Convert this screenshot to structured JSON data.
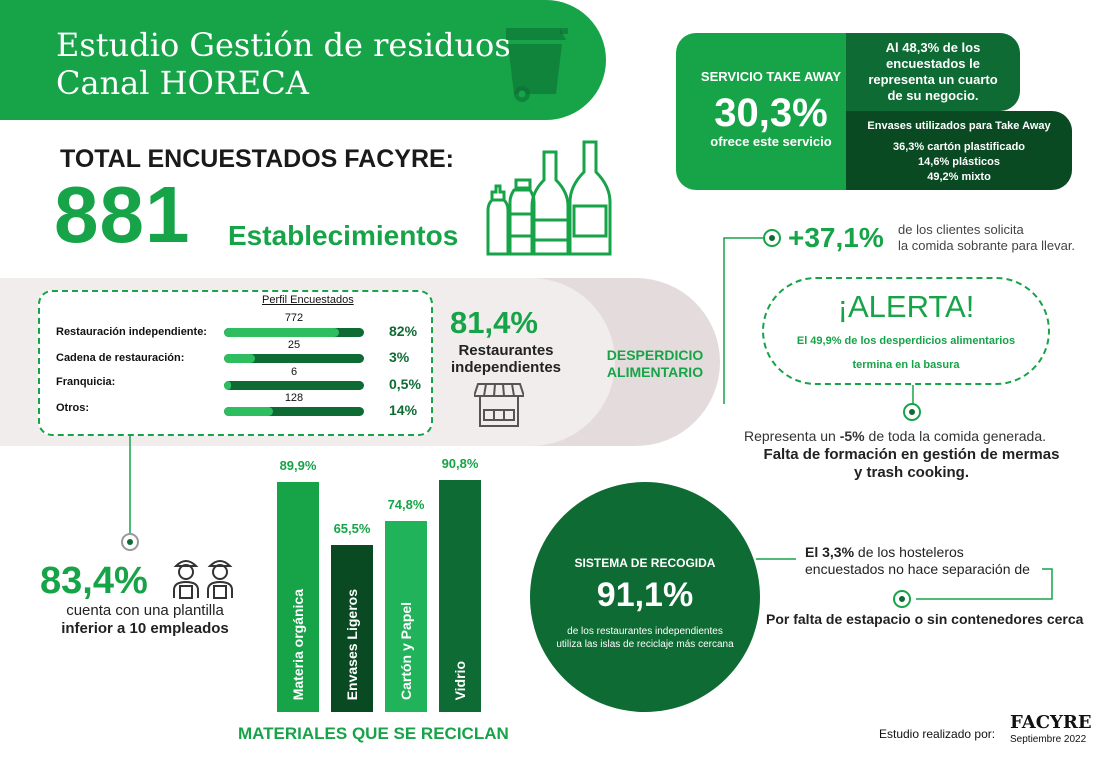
{
  "header": {
    "title_line1": "Estudio Gestión de residuos",
    "title_line2": "Canal HORECA"
  },
  "totals": {
    "heading": "TOTAL ENCUESTADOS FACYRE:",
    "number": "881",
    "unit": "Establecimientos"
  },
  "takeaway": {
    "title": "SERVICIO TAKE AWAY",
    "percent": "30,3%",
    "subtitle": "ofrece este servicio",
    "quarter_text": "Al 48,3% de los encuestados le representa un cuarto de su negocio.",
    "packaging_title": "Envases utilizados para Take Away",
    "packaging": [
      "36,3% cartón plastificado",
      "14,6% plásticos",
      "49,2% mixto"
    ]
  },
  "profile": {
    "title": "Perfil Encuestados",
    "rows": [
      {
        "label": "Restauración independiente:",
        "count": "772",
        "percent": "82%",
        "fill": 0.82
      },
      {
        "label": "Cadena de restauración:",
        "count": "25",
        "percent": "3%",
        "fill": 0.22
      },
      {
        "label": "Franquicia:",
        "count": "6",
        "percent": "0,5%",
        "fill": 0.05
      },
      {
        "label": "Otros:",
        "count": "128",
        "percent": "14%",
        "fill": 0.35
      }
    ]
  },
  "independents": {
    "percent": "81,4%",
    "label_line1": "Restaurantes",
    "label_line2": "independientes"
  },
  "waste": {
    "label_line1": "DESPERDICIO",
    "label_line2": "ALIMENTARIO",
    "leftover_percent": "+37,1%",
    "leftover_line1": "de los clientes solicita",
    "leftover_line2": "la comida sobrante para llevar.",
    "alert_title": "¡ALERTA!",
    "alert_line1": "El 49,9% de los desperdicios alimentarios",
    "alert_line2": "termina en la basura",
    "represents_prefix": "Representa un ",
    "represents_value": "-5%",
    "represents_suffix": " de toda la comida generada.",
    "training_line1": "Falta de formación en gestión de mermas",
    "training_line2": "y trash cooking."
  },
  "staff": {
    "percent": "83,4%",
    "line1": "cuenta con una plantilla",
    "line2": "inferior a 10 empleados"
  },
  "recycling": {
    "title": "MATERIALES QUE SE RECICLAN",
    "bars": [
      {
        "label": "Materia orgánica",
        "value": "89,9%",
        "fraction": 0.899,
        "color": "#17a348"
      },
      {
        "label": "Envases Ligeros",
        "value": "65,5%",
        "fraction": 0.655,
        "color": "#0a4a23"
      },
      {
        "label": "Cartón y Papel",
        "value": "74,8%",
        "fraction": 0.748,
        "color": "#21b35a"
      },
      {
        "label": "Vidrio",
        "value": "90,8%",
        "fraction": 0.908,
        "color": "#0d6b33"
      }
    ]
  },
  "collection": {
    "title": "SISTEMA DE RECOGIDA",
    "percent": "91,1%",
    "line1": "de los restaurantes independientes",
    "line2": "utiliza las islas de reciclaje más cercana",
    "separation_bold": "El 3,3%",
    "separation_rest1": " de los hosteleros",
    "separation_line2": "encuestados no hace separación de",
    "reason": "Por falta de estapacio o sin contenedores cerca"
  },
  "footer": {
    "study_by": "Estudio realizado por:",
    "brand": "FACYRE",
    "date": "Septiembre 2022"
  },
  "colors": {
    "green": "#17a348",
    "dark_green": "#0d6b33",
    "darkest_green": "#0a4a23",
    "band": "#f1eded"
  },
  "icons": [
    "trash-bin-icon",
    "bottles-icon",
    "shop-icon",
    "workers-icon",
    "dot-marker-icon"
  ]
}
